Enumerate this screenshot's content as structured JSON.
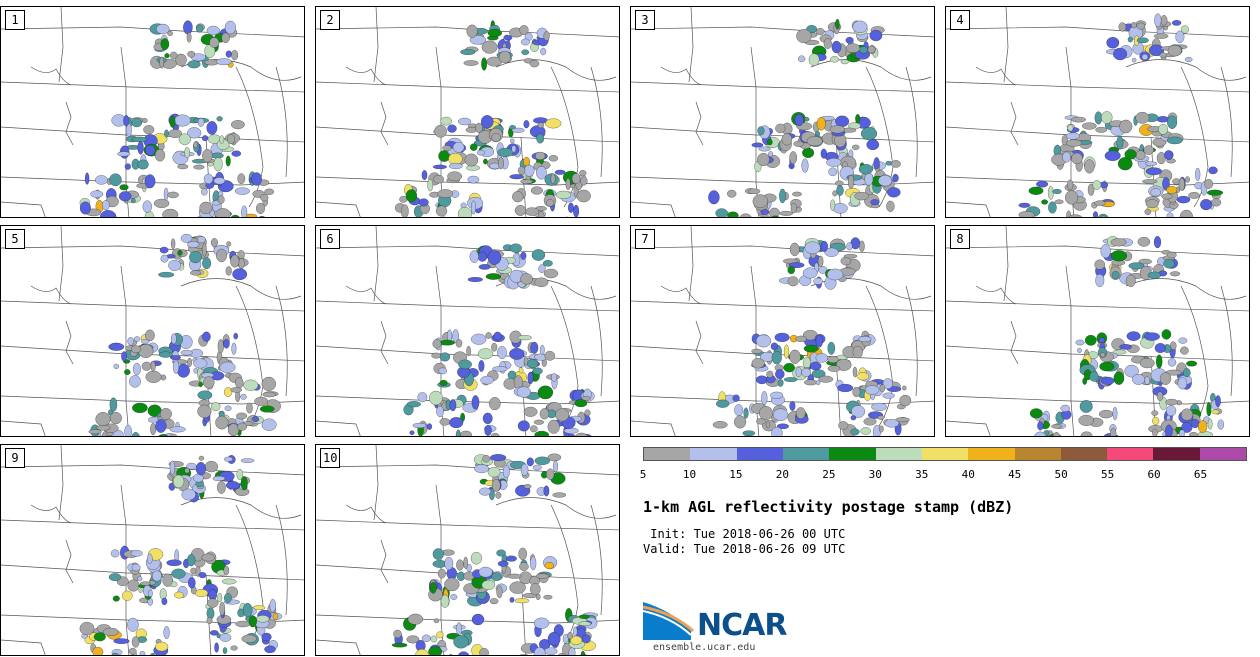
{
  "panels": [
    {
      "label": "1"
    },
    {
      "label": "2"
    },
    {
      "label": "3"
    },
    {
      "label": "4"
    },
    {
      "label": "5"
    },
    {
      "label": "6"
    },
    {
      "label": "7"
    },
    {
      "label": "8"
    },
    {
      "label": "9"
    },
    {
      "label": "10"
    }
  ],
  "colorbar": {
    "colors": [
      "#a6a6a6",
      "#b4c0ec",
      "#5460dc",
      "#4f9a9e",
      "#0b8a11",
      "#bcdcbc",
      "#f0e066",
      "#f0b21a",
      "#b98530",
      "#8d5a3c",
      "#f5497a",
      "#6a1838",
      "#ad4aa9"
    ],
    "ticks": [
      "5",
      "10",
      "15",
      "20",
      "25",
      "30",
      "35",
      "40",
      "45",
      "50",
      "55",
      "60",
      "65"
    ]
  },
  "title": "1-km AGL reflectivity postage stamp (dBZ)",
  "init": " Init: Tue 2018-06-26 00 UTC",
  "valid": "Valid: Tue 2018-06-26 09 UTC",
  "logo": {
    "name": "NCAR",
    "url": "ensemble.ucar.edu"
  }
}
